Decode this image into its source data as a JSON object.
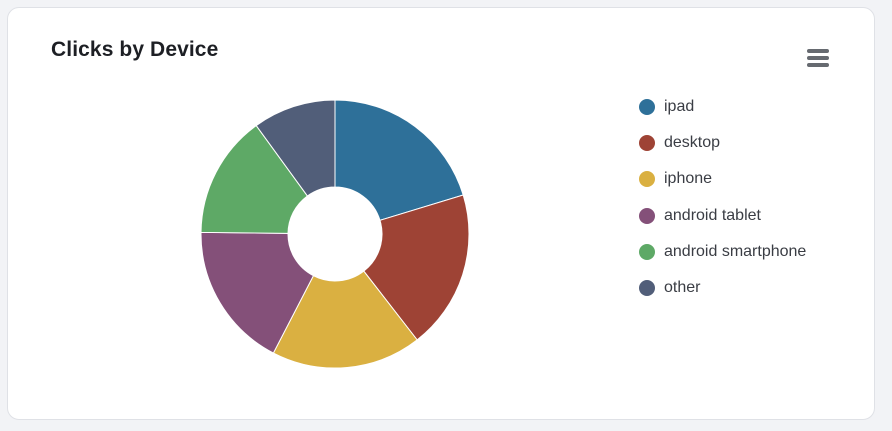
{
  "card": {
    "title": "Clicks by Device",
    "menu_icon": "hamburger-menu-icon"
  },
  "chart_data": {
    "type": "pie",
    "donut": true,
    "title": "Clicks by Device",
    "legend_position": "right",
    "series": [
      {
        "name": "ipad",
        "value": 20.3,
        "color": "#2e7099"
      },
      {
        "name": "desktop",
        "value": 19.2,
        "color": "#9e4335"
      },
      {
        "name": "iphone",
        "value": 18.1,
        "color": "#dab041"
      },
      {
        "name": "android tablet",
        "value": 17.6,
        "color": "#845079"
      },
      {
        "name": "android smartphone",
        "value": 14.8,
        "color": "#5ea966"
      },
      {
        "name": "other",
        "value": 10.0,
        "color": "#515e79"
      }
    ]
  }
}
